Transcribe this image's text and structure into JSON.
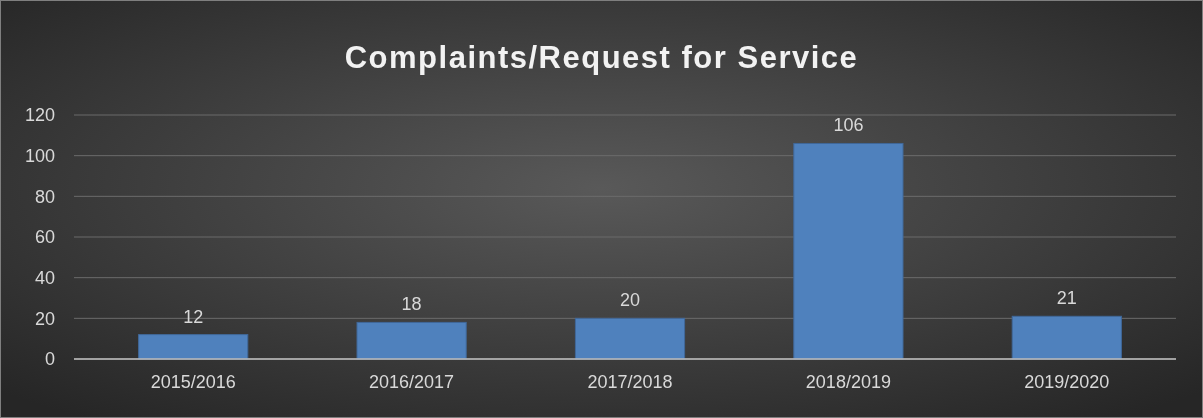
{
  "chart_data": {
    "type": "bar",
    "title": "Complaints/Request for Service",
    "categories": [
      "2015/2016",
      "2016/2017",
      "2017/2018",
      "2018/2019",
      "2019/2020"
    ],
    "values": [
      12,
      18,
      20,
      106,
      21
    ],
    "color": "#4f81bd",
    "ylim": [
      0,
      120
    ],
    "yticks": [
      0,
      20,
      40,
      60,
      80,
      100,
      120
    ],
    "grid": "y",
    "data_labels": true
  }
}
